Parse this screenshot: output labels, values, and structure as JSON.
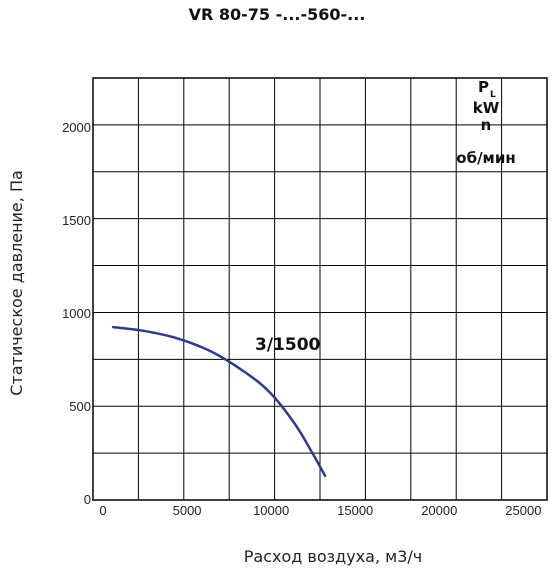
{
  "chart_data": {
    "type": "line",
    "title": "VR 80-75 -...-560-...",
    "xlabel": "Расход воздуха, м3/ч",
    "ylabel": "Статическое давление, Па",
    "xlim": [
      0,
      27000
    ],
    "ylim": [
      0,
      2270
    ],
    "xticks": [
      0,
      5000,
      10000,
      15000,
      20000,
      25000
    ],
    "xtick_labels": [
      "0",
      "5000",
      "10000",
      "15000",
      "20000",
      "25000"
    ],
    "yticks": [
      0,
      500,
      1000,
      1500,
      2000
    ],
    "ytick_labels": [
      "0",
      "500",
      "1000",
      "1500",
      "2000"
    ],
    "grid": true,
    "series": [
      {
        "name": "3/1500",
        "color": "#2b3990",
        "x": [
          1200,
          3000,
          5000,
          7000,
          9000,
          10500,
          12000,
          13000,
          13800
        ],
        "y": [
          930,
          910,
          870,
          800,
          690,
          580,
          410,
          260,
          130
        ]
      }
    ],
    "legend": {
      "p_main": "P",
      "p_sub": "L",
      "unit_power": "kW",
      "speed_symbol": "n",
      "speed_unit": "об/мин"
    }
  }
}
